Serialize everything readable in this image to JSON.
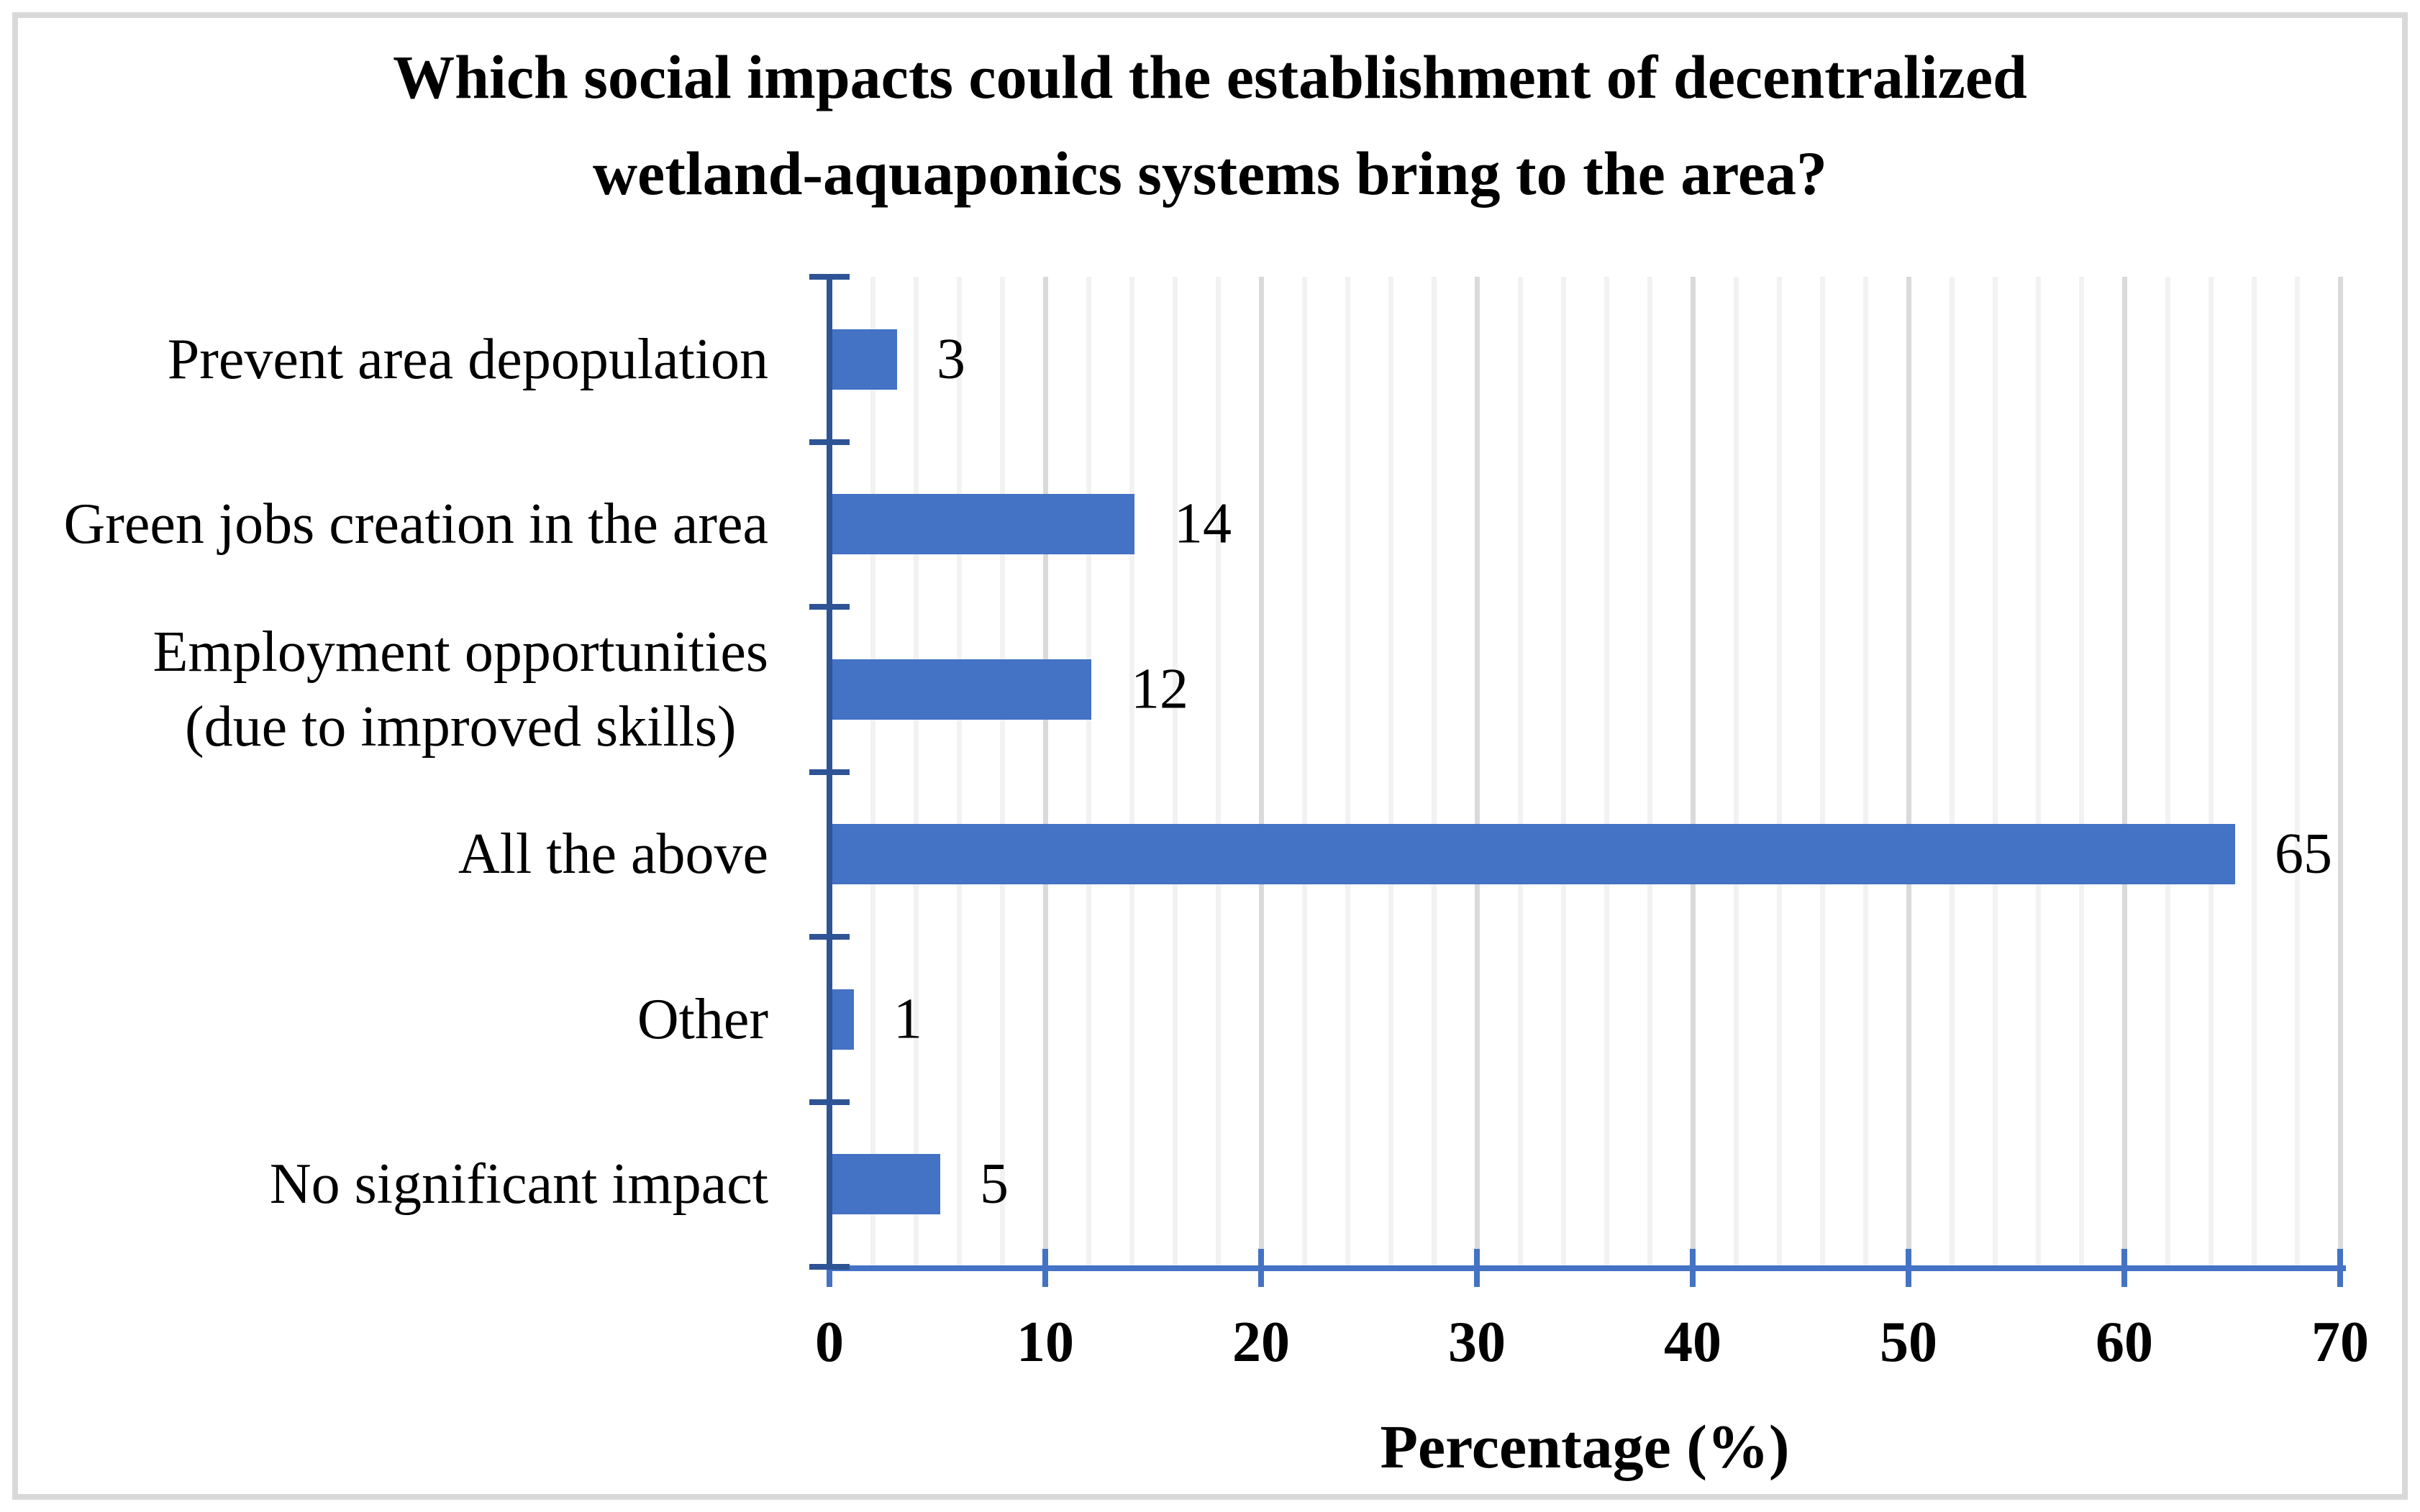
{
  "chart_data": {
    "type": "bar",
    "orientation": "horizontal",
    "title": "Which social impacts could the establishment of decentralized wetland-aquaponics systems bring to the area?",
    "title_lines": [
      "Which social impacts could the establishment of decentralized",
      "wetland-aquaponics systems bring to the area?"
    ],
    "categories": [
      {
        "label": "Prevent area depopulation",
        "lines": [
          "Prevent area depopulation"
        ],
        "value": 3,
        "data_label": "3"
      },
      {
        "label": "Green jobs creation in the area",
        "lines": [
          "Green jobs creation in the area"
        ],
        "value": 14,
        "data_label": "14"
      },
      {
        "label": "Employment opportunities (due to improved skills)",
        "lines": [
          "Employment opportunities",
          "(due to improved skills)"
        ],
        "value": 12,
        "data_label": "12"
      },
      {
        "label": "All the above",
        "lines": [
          "All the above"
        ],
        "value": 65,
        "data_label": "65"
      },
      {
        "label": "Other",
        "lines": [
          "Other"
        ],
        "value": 1,
        "data_label": "1"
      },
      {
        "label": "No significant impact",
        "lines": [
          "No significant impact"
        ],
        "value": 5,
        "data_label": "5"
      }
    ],
    "values": [
      3,
      14,
      12,
      65,
      1,
      5
    ],
    "xlabel": "Percentage (%)",
    "x_ticks": [
      0,
      10,
      20,
      30,
      40,
      50,
      60,
      70
    ],
    "xlim": [
      0,
      70
    ],
    "grid": {
      "minor_step": 2,
      "major_step": 10,
      "vertical": true
    },
    "legend_position": "none",
    "colors": {
      "bar": "#4472C4",
      "y_axis": "#2E5496",
      "x_axis": "#4472C4",
      "grid_minor": "#F2F2F2",
      "grid_major": "#DADADA",
      "frame": "#D9D9D9",
      "text": "#000000"
    }
  }
}
